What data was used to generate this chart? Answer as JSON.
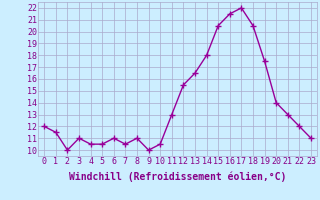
{
  "x": [
    0,
    1,
    2,
    3,
    4,
    5,
    6,
    7,
    8,
    9,
    10,
    11,
    12,
    13,
    14,
    15,
    16,
    17,
    18,
    19,
    20,
    21,
    22,
    23
  ],
  "y": [
    12.0,
    11.5,
    10.0,
    11.0,
    10.5,
    10.5,
    11.0,
    10.5,
    11.0,
    10.0,
    10.5,
    13.0,
    15.5,
    16.5,
    18.0,
    20.5,
    21.5,
    22.0,
    20.5,
    17.5,
    14.0,
    13.0,
    12.0,
    11.0
  ],
  "line_color": "#990099",
  "marker": "+",
  "marker_size": 4,
  "linewidth": 1.0,
  "xlabel": "Windchill (Refroidissement éolien,°C)",
  "xlabel_fontsize": 7,
  "ytick_labels": [
    "10",
    "11",
    "12",
    "13",
    "14",
    "15",
    "16",
    "17",
    "18",
    "19",
    "20",
    "21",
    "22"
  ],
  "ytick_vals": [
    10,
    11,
    12,
    13,
    14,
    15,
    16,
    17,
    18,
    19,
    20,
    21,
    22
  ],
  "xlim": [
    -0.5,
    23.5
  ],
  "ylim": [
    9.5,
    22.5
  ],
  "background_color": "#cceeff",
  "grid_color": "#aaaacc",
  "tick_fontsize": 6,
  "tick_color": "#880088",
  "xlabel_color": "#880088"
}
